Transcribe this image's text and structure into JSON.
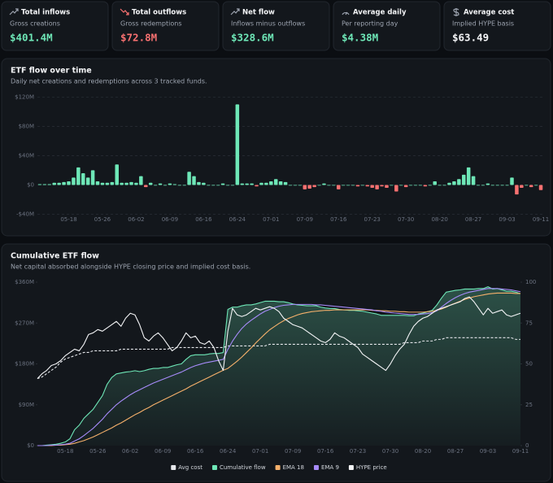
{
  "cards": [
    {
      "title": "Total inflows",
      "subtitle": "Gross creations",
      "value": "$401.4M",
      "color": "#6ee7b7"
    },
    {
      "title": "Total outflows",
      "subtitle": "Gross redemptions",
      "value": "$72.8M",
      "color": "#f87171"
    },
    {
      "title": "Net flow",
      "subtitle": "Inflows minus outflows",
      "value": "$328.6M",
      "color": "#6ee7b7"
    },
    {
      "title": "Average daily",
      "subtitle": "Per reporting day",
      "value": "$4.38M",
      "color": "#6ee7b7"
    },
    {
      "title": "Average cost",
      "subtitle": "Implied HYPE basis",
      "value": "$63.49",
      "color": "#f3f4f6"
    }
  ],
  "chart_data": [
    {
      "type": "bar",
      "title": "ETF flow over time",
      "subtitle": "Daily net creations and redemptions across 3 tracked funds.",
      "categories": [
        null,
        null,
        null,
        null,
        null,
        null,
        "05-18",
        null,
        null,
        null,
        null,
        null,
        null,
        "05-26",
        null,
        null,
        null,
        null,
        null,
        null,
        "06-02",
        null,
        null,
        null,
        null,
        null,
        null,
        "06-09",
        null,
        null,
        null,
        null,
        null,
        null,
        "06-16",
        null,
        null,
        null,
        null,
        null,
        null,
        "06-24",
        null,
        null,
        null,
        null,
        null,
        null,
        "07-01",
        null,
        null,
        null,
        null,
        null,
        null,
        "07-09",
        null,
        null,
        null,
        null,
        null,
        null,
        "07-16",
        null,
        null,
        null,
        null,
        null,
        null,
        "07-23",
        null,
        null,
        null,
        null,
        null,
        null,
        "07-30",
        null,
        null,
        null,
        null,
        null,
        null,
        "08-20",
        null,
        null,
        null,
        null,
        null,
        null,
        "08-27",
        null,
        null,
        null,
        null,
        null,
        null,
        "09-03",
        null,
        null,
        null,
        null,
        null,
        null,
        "09-11"
      ],
      "values": [
        1,
        1,
        1,
        3,
        3,
        4,
        5,
        10,
        24,
        16,
        10,
        20,
        5,
        3,
        3,
        4,
        28,
        3,
        3,
        4,
        3,
        12,
        -3,
        3,
        0,
        2,
        0,
        2,
        1,
        0,
        0,
        18,
        12,
        4,
        3,
        0,
        0,
        0,
        2,
        0,
        0,
        110,
        2,
        2,
        2,
        -2,
        3,
        3,
        5,
        8,
        5,
        4,
        0,
        0,
        0,
        -6,
        -5,
        -3,
        0,
        2,
        0,
        0,
        -6,
        0,
        0,
        0,
        -2,
        0,
        -2,
        -4,
        -6,
        -2,
        -4,
        0,
        -9,
        0,
        -3,
        0,
        0,
        0,
        -2,
        0,
        5,
        0,
        0,
        3,
        5,
        8,
        14,
        24,
        12,
        0,
        0,
        2,
        0,
        0,
        0,
        0,
        10,
        -13,
        -4,
        0,
        -3,
        0,
        -7
      ],
      "color": "#6ee7b7",
      "negative_color": "#f87171",
      "ylim": [
        -45,
        127
      ],
      "yticks": [
        {
          "value": -40,
          "label": "-$40M"
        },
        {
          "value": 0,
          "label": "$0"
        },
        {
          "value": 40,
          "label": "$40M"
        },
        {
          "value": 80,
          "label": "$80M"
        },
        {
          "value": 120,
          "label": "$120M"
        }
      ],
      "grid": true
    },
    {
      "type": "line",
      "title": "Cumulative ETF flow",
      "subtitle": "Net capital absorbed alongside HYPE closing price and implied cost basis.",
      "categories": [
        null,
        null,
        null,
        null,
        null,
        null,
        "05-18",
        null,
        null,
        null,
        null,
        null,
        null,
        "05-26",
        null,
        null,
        null,
        null,
        null,
        null,
        "06-02",
        null,
        null,
        null,
        null,
        null,
        null,
        "06-09",
        null,
        null,
        null,
        null,
        null,
        null,
        "06-16",
        null,
        null,
        null,
        null,
        null,
        null,
        "06-24",
        null,
        null,
        null,
        null,
        null,
        null,
        "07-01",
        null,
        null,
        null,
        null,
        null,
        null,
        "07-09",
        null,
        null,
        null,
        null,
        null,
        null,
        "07-16",
        null,
        null,
        null,
        null,
        null,
        null,
        "07-23",
        null,
        null,
        null,
        null,
        null,
        null,
        "07-30",
        null,
        null,
        null,
        null,
        null,
        null,
        "08-20",
        null,
        null,
        null,
        null,
        null,
        null,
        "08-27",
        null,
        null,
        null,
        null,
        null,
        null,
        "09-03",
        null,
        null,
        null,
        null,
        null,
        null,
        "09-11"
      ],
      "series": [
        {
          "name": "Avg cost",
          "color": "#e5e7eb",
          "dash": true,
          "axis": "y2",
          "values": [
            41,
            42,
            44,
            46,
            48,
            51,
            53,
            54,
            55,
            56,
            57,
            57,
            58,
            58,
            58,
            58,
            58,
            58,
            59,
            59,
            59,
            59,
            59,
            59,
            59,
            59,
            59,
            59,
            59,
            60,
            60,
            60,
            60,
            60,
            60,
            60,
            60,
            60,
            60,
            60,
            60,
            61,
            61,
            61,
            61,
            61,
            61,
            61,
            61,
            61,
            62,
            62,
            62,
            62,
            62,
            62,
            62,
            62,
            62,
            62,
            62,
            62,
            62,
            62,
            62,
            62,
            62,
            62,
            62,
            62,
            62,
            62,
            62,
            62,
            62,
            62,
            62,
            62,
            62,
            63,
            63,
            63,
            63,
            64,
            64,
            64,
            65,
            65,
            66,
            66,
            66,
            66,
            66,
            66,
            66,
            66,
            66,
            66,
            66,
            66,
            66,
            66,
            66,
            65,
            65
          ]
        },
        {
          "name": "Cumulative flow",
          "color": "#6ee7b7",
          "area": true,
          "values": [
            0,
            0,
            1,
            2,
            3,
            5,
            8,
            15,
            35,
            45,
            60,
            70,
            80,
            95,
            110,
            135,
            150,
            158,
            160,
            162,
            163,
            165,
            163,
            165,
            168,
            170,
            170,
            172,
            172,
            175,
            178,
            180,
            190,
            198,
            200,
            200,
            200,
            202,
            203,
            203,
            205,
            300,
            305,
            305,
            308,
            310,
            310,
            312,
            315,
            318,
            318,
            318,
            317,
            317,
            315,
            312,
            310,
            309,
            308,
            308,
            308,
            305,
            303,
            302,
            302,
            300,
            299,
            298,
            298,
            297,
            296,
            294,
            292,
            290,
            287,
            287,
            287,
            287,
            287,
            287,
            286,
            286,
            290,
            292,
            295,
            298,
            310,
            325,
            338,
            340,
            342,
            343,
            345,
            345,
            345,
            346,
            346,
            350,
            345,
            346,
            343,
            340,
            340,
            338,
            335
          ]
        },
        {
          "name": "EMA 18",
          "color": "#f5b06b",
          "values": [
            0,
            0,
            0,
            0,
            1,
            1,
            2,
            3,
            5,
            8,
            11,
            15,
            19,
            24,
            29,
            34,
            39,
            45,
            50,
            56,
            62,
            68,
            73,
            79,
            84,
            90,
            95,
            100,
            105,
            110,
            115,
            120,
            125,
            131,
            136,
            141,
            146,
            151,
            156,
            161,
            166,
            170,
            178,
            186,
            195,
            205,
            215,
            226,
            236,
            246,
            255,
            262,
            269,
            275,
            280,
            284,
            288,
            291,
            293,
            295,
            296,
            297,
            298,
            298,
            299,
            299,
            299,
            299,
            299,
            299,
            299,
            299,
            298,
            298,
            297,
            297,
            296,
            296,
            295,
            295,
            294,
            294,
            294,
            294,
            295,
            296,
            298,
            301,
            305,
            310,
            314,
            318,
            322,
            325,
            328,
            330,
            332,
            334,
            335,
            336,
            336,
            336,
            336,
            335,
            335
          ]
        },
        {
          "name": "EMA 9",
          "color": "#a78bfa",
          "values": [
            0,
            0,
            0,
            1,
            1,
            2,
            3,
            5,
            10,
            15,
            22,
            30,
            38,
            48,
            58,
            70,
            80,
            90,
            98,
            105,
            112,
            118,
            123,
            128,
            133,
            138,
            142,
            146,
            150,
            154,
            158,
            162,
            167,
            172,
            176,
            179,
            182,
            184,
            186,
            188,
            190,
            212,
            230,
            245,
            258,
            268,
            276,
            283,
            290,
            296,
            300,
            304,
            307,
            309,
            310,
            311,
            311,
            311,
            311,
            311,
            310,
            310,
            309,
            308,
            307,
            306,
            305,
            304,
            303,
            302,
            301,
            300,
            299,
            297,
            296,
            294,
            293,
            292,
            291,
            290,
            289,
            289,
            289,
            290,
            291,
            293,
            297,
            305,
            313,
            320,
            326,
            331,
            335,
            338,
            340,
            342,
            344,
            346,
            346,
            346,
            345,
            344,
            343,
            341,
            339
          ]
        },
        {
          "name": "HYPE price",
          "color": "#f3f4f6",
          "axis": "y2",
          "values": [
            41,
            44,
            46,
            49,
            50,
            52,
            55,
            57,
            59,
            58,
            62,
            68,
            69,
            71,
            70,
            72,
            74,
            76,
            73,
            78,
            81,
            80,
            74,
            66,
            64,
            67,
            69,
            66,
            62,
            58,
            60,
            64,
            69,
            66,
            67,
            63,
            62,
            64,
            60,
            52,
            46,
            70,
            84,
            80,
            79,
            80,
            82,
            84,
            83,
            84,
            85,
            84,
            82,
            78,
            76,
            74,
            73,
            72,
            70,
            68,
            66,
            64,
            63,
            65,
            69,
            67,
            66,
            64,
            62,
            60,
            56,
            54,
            52,
            50,
            48,
            46,
            50,
            55,
            59,
            62,
            68,
            73,
            76,
            78,
            79,
            81,
            83,
            84,
            85,
            86,
            87,
            88,
            90,
            91,
            88,
            84,
            80,
            84,
            81,
            82,
            83,
            80,
            79,
            80,
            81
          ]
        }
      ],
      "ylim": [
        0,
        369
      ],
      "yticks": [
        {
          "value": 0,
          "label": "$0"
        },
        {
          "value": 90,
          "label": "$90M"
        },
        {
          "value": 180,
          "label": "$180M"
        },
        {
          "value": 270,
          "label": "$270M"
        },
        {
          "value": 360,
          "label": "$360M"
        }
      ],
      "y2lim": [
        0,
        102.5
      ],
      "y2ticks": [
        0,
        25,
        50,
        75,
        100
      ],
      "legend": "bottom",
      "grid": false
    }
  ]
}
